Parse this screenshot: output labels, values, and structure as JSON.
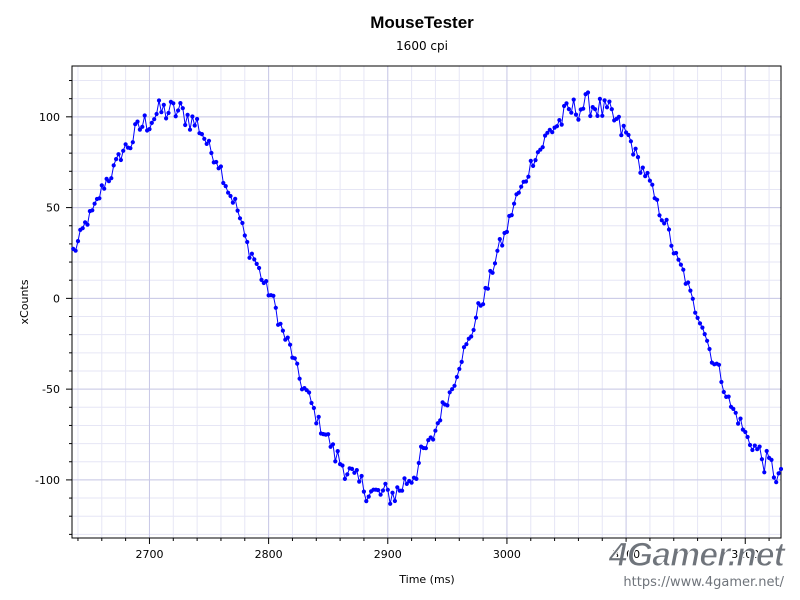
{
  "chart_data": {
    "type": "scatter",
    "title": "MouseTester",
    "subtitle": "1600 cpi",
    "xlabel": "Time (ms)",
    "ylabel": "xCounts",
    "xlim": [
      2635,
      3230
    ],
    "ylim": [
      -132,
      128
    ],
    "xticks": [
      2700,
      2800,
      2900,
      3000,
      3100,
      3200
    ],
    "yticks": [
      100,
      50,
      0,
      -50,
      -100
    ],
    "grid": true,
    "series_color": "#0000ff",
    "sample_interval_ms": 2,
    "anchor_points": [
      {
        "x": 2636,
        "y": 26
      },
      {
        "x": 2650,
        "y": 45
      },
      {
        "x": 2665,
        "y": 66
      },
      {
        "x": 2680,
        "y": 83
      },
      {
        "x": 2695,
        "y": 96
      },
      {
        "x": 2710,
        "y": 103
      },
      {
        "x": 2725,
        "y": 103
      },
      {
        "x": 2740,
        "y": 96
      },
      {
        "x": 2755,
        "y": 78
      },
      {
        "x": 2770,
        "y": 55
      },
      {
        "x": 2785,
        "y": 25
      },
      {
        "x": 2800,
        "y": 4
      },
      {
        "x": 2815,
        "y": -23
      },
      {
        "x": 2830,
        "y": -50
      },
      {
        "x": 2845,
        "y": -72
      },
      {
        "x": 2860,
        "y": -90
      },
      {
        "x": 2875,
        "y": -102
      },
      {
        "x": 2890,
        "y": -108
      },
      {
        "x": 2905,
        "y": -108
      },
      {
        "x": 2920,
        "y": -98
      },
      {
        "x": 2935,
        "y": -80
      },
      {
        "x": 2950,
        "y": -55
      },
      {
        "x": 2965,
        "y": -28
      },
      {
        "x": 2980,
        "y": 0
      },
      {
        "x": 2995,
        "y": 30
      },
      {
        "x": 3010,
        "y": 58
      },
      {
        "x": 3025,
        "y": 80
      },
      {
        "x": 3040,
        "y": 95
      },
      {
        "x": 3055,
        "y": 104
      },
      {
        "x": 3070,
        "y": 107
      },
      {
        "x": 3085,
        "y": 102
      },
      {
        "x": 3100,
        "y": 90
      },
      {
        "x": 3115,
        "y": 70
      },
      {
        "x": 3130,
        "y": 46
      },
      {
        "x": 3145,
        "y": 18
      },
      {
        "x": 3160,
        "y": -8
      },
      {
        "x": 3175,
        "y": -36
      },
      {
        "x": 3190,
        "y": -62
      },
      {
        "x": 3205,
        "y": -80
      },
      {
        "x": 3220,
        "y": -92
      },
      {
        "x": 3230,
        "y": -100
      }
    ]
  },
  "watermark": {
    "logo_text": "4Gamer.net",
    "url_text": "https://www.4gamer.net/"
  }
}
